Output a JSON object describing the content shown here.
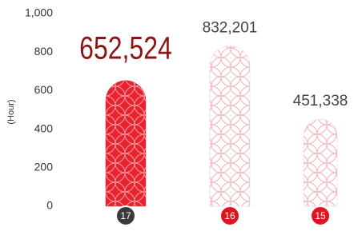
{
  "chart_data": {
    "type": "bar",
    "y_label": "(Hour)",
    "categories": [
      "17",
      "16",
      "15"
    ],
    "values": [
      652524,
      832201,
      451338
    ],
    "value_labels": [
      "652,524",
      "832,201",
      "451,338"
    ],
    "colors": [
      "#e8222e",
      "#f4c6cb",
      "#f4c6cb"
    ],
    "label_colors": [
      "#8b1414",
      "#444444",
      "#444444"
    ],
    "badge_colors": [
      "#3b3b3b",
      "#e0141e",
      "#e0141e"
    ],
    "ylim": [
      0,
      1000000
    ],
    "yticks": [
      {
        "value": 0,
        "label": "0"
      },
      {
        "value": 200000,
        "label": "200"
      },
      {
        "value": 400000,
        "label": "400"
      },
      {
        "value": 600000,
        "label": "600"
      },
      {
        "value": 800000,
        "label": "800"
      },
      {
        "value": 1000000,
        "label": "1,000"
      }
    ],
    "grid": false
  }
}
